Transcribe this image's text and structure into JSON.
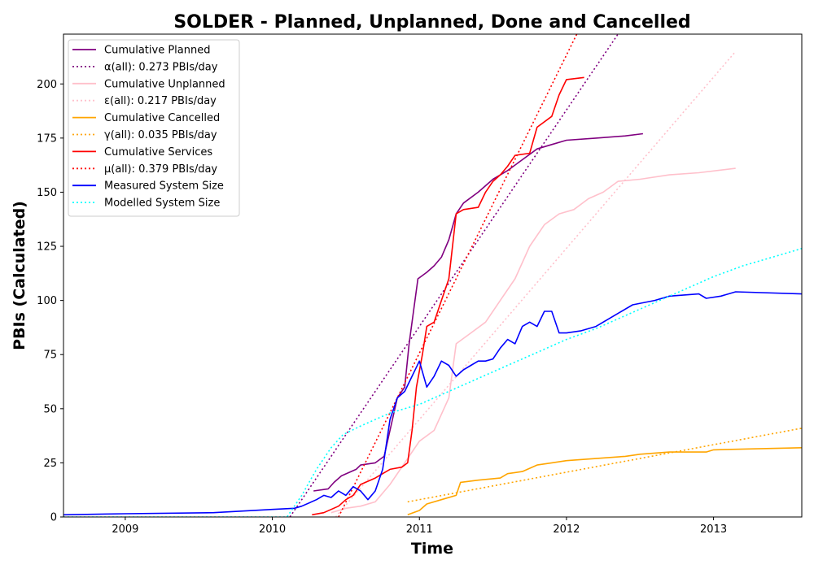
{
  "chart_data": {
    "type": "line",
    "title": "SOLDER - Planned, Unplanned, Done  and Cancelled",
    "xlabel": "Time",
    "ylabel": "PBIs (Calculated)",
    "xlim": [
      2008.58,
      2013.6
    ],
    "ylim": [
      0,
      223
    ],
    "x_ticks": [
      2009,
      2010,
      2011,
      2012,
      2013
    ],
    "x_tick_labels": [
      "2009",
      "2010",
      "2011",
      "2012",
      "2013"
    ],
    "y_ticks": [
      0,
      25,
      50,
      75,
      100,
      125,
      150,
      175,
      200
    ],
    "y_tick_labels": [
      "0",
      "25",
      "50",
      "75",
      "100",
      "125",
      "150",
      "175",
      "200"
    ],
    "grid": false,
    "legend_position": "upper-left",
    "series": [
      {
        "name": "Cumulative Planned",
        "color": "#800080",
        "style": "solid",
        "points": [
          [
            2010.28,
            12
          ],
          [
            2010.38,
            13
          ],
          [
            2010.42,
            16
          ],
          [
            2010.47,
            19
          ],
          [
            2010.57,
            22
          ],
          [
            2010.6,
            24
          ],
          [
            2010.7,
            25
          ],
          [
            2010.76,
            28
          ],
          [
            2010.8,
            40
          ],
          [
            2010.85,
            55
          ],
          [
            2010.9,
            60
          ],
          [
            2010.93,
            80
          ],
          [
            2010.97,
            100
          ],
          [
            2010.99,
            110
          ],
          [
            2011.05,
            113
          ],
          [
            2011.1,
            116
          ],
          [
            2011.15,
            120
          ],
          [
            2011.2,
            128
          ],
          [
            2011.25,
            140
          ],
          [
            2011.3,
            145
          ],
          [
            2011.4,
            150
          ],
          [
            2011.5,
            156
          ],
          [
            2011.6,
            160
          ],
          [
            2011.7,
            165
          ],
          [
            2011.8,
            170
          ],
          [
            2011.9,
            172
          ],
          [
            2012.0,
            174
          ],
          [
            2012.2,
            175
          ],
          [
            2012.4,
            176
          ],
          [
            2012.52,
            177
          ]
        ]
      },
      {
        "name": "α(all): 0.273 PBIs/day",
        "color": "#800080",
        "style": "dotted",
        "points": [
          [
            2010.12,
            0
          ],
          [
            2012.35,
            223
          ]
        ]
      },
      {
        "name": "Cumulative Unplanned",
        "color": "#FFC0CB",
        "style": "solid",
        "points": [
          [
            2010.4,
            2
          ],
          [
            2010.5,
            4
          ],
          [
            2010.6,
            5
          ],
          [
            2010.7,
            7
          ],
          [
            2010.8,
            15
          ],
          [
            2010.9,
            25
          ],
          [
            2011.0,
            35
          ],
          [
            2011.1,
            40
          ],
          [
            2011.2,
            55
          ],
          [
            2011.25,
            80
          ],
          [
            2011.35,
            85
          ],
          [
            2011.45,
            90
          ],
          [
            2011.55,
            100
          ],
          [
            2011.65,
            110
          ],
          [
            2011.75,
            125
          ],
          [
            2011.85,
            135
          ],
          [
            2011.95,
            140
          ],
          [
            2012.05,
            142
          ],
          [
            2012.15,
            147
          ],
          [
            2012.25,
            150
          ],
          [
            2012.35,
            155
          ],
          [
            2012.5,
            156
          ],
          [
            2012.7,
            158
          ],
          [
            2012.9,
            159
          ],
          [
            2013.15,
            161
          ]
        ]
      },
      {
        "name": "ε(all): 0.217 PBIs/day",
        "color": "#FFC0CB",
        "style": "dotted",
        "points": [
          [
            2010.43,
            0
          ],
          [
            2013.15,
            215
          ]
        ]
      },
      {
        "name": "Cumulative Cancelled",
        "color": "#FFA500",
        "style": "solid",
        "points": [
          [
            2010.92,
            1
          ],
          [
            2011.0,
            3
          ],
          [
            2011.05,
            6
          ],
          [
            2011.15,
            8
          ],
          [
            2011.25,
            10
          ],
          [
            2011.28,
            16
          ],
          [
            2011.4,
            17
          ],
          [
            2011.55,
            18
          ],
          [
            2011.6,
            20
          ],
          [
            2011.7,
            21
          ],
          [
            2011.8,
            24
          ],
          [
            2011.9,
            25
          ],
          [
            2012.0,
            26
          ],
          [
            2012.2,
            27
          ],
          [
            2012.4,
            28
          ],
          [
            2012.5,
            29
          ],
          [
            2012.7,
            30
          ],
          [
            2012.95,
            30
          ],
          [
            2013.0,
            31
          ],
          [
            2013.3,
            31.5
          ],
          [
            2013.6,
            32
          ]
        ]
      },
      {
        "name": "γ(all): 0.035 PBIs/day",
        "color": "#FFA500",
        "style": "dotted",
        "points": [
          [
            2010.92,
            7
          ],
          [
            2013.6,
            41
          ]
        ]
      },
      {
        "name": "Cumulative Services",
        "color": "#FF0000",
        "style": "solid",
        "points": [
          [
            2010.27,
            1
          ],
          [
            2010.35,
            2
          ],
          [
            2010.45,
            5
          ],
          [
            2010.5,
            8
          ],
          [
            2010.55,
            10
          ],
          [
            2010.6,
            15
          ],
          [
            2010.7,
            18
          ],
          [
            2010.75,
            20
          ],
          [
            2010.8,
            22
          ],
          [
            2010.88,
            23
          ],
          [
            2010.92,
            25
          ],
          [
            2010.95,
            40
          ],
          [
            2010.98,
            60
          ],
          [
            2011.02,
            75
          ],
          [
            2011.05,
            88
          ],
          [
            2011.1,
            90
          ],
          [
            2011.15,
            100
          ],
          [
            2011.2,
            110
          ],
          [
            2011.25,
            140
          ],
          [
            2011.3,
            142
          ],
          [
            2011.4,
            143
          ],
          [
            2011.45,
            150
          ],
          [
            2011.5,
            155
          ],
          [
            2011.55,
            158
          ],
          [
            2011.6,
            162
          ],
          [
            2011.65,
            167
          ],
          [
            2011.75,
            168
          ],
          [
            2011.8,
            180
          ],
          [
            2011.9,
            185
          ],
          [
            2011.95,
            195
          ],
          [
            2012.0,
            202
          ],
          [
            2012.12,
            203
          ]
        ]
      },
      {
        "name": "μ(all): 0.379 PBIs/day",
        "color": "#FF0000",
        "style": "dotted",
        "points": [
          [
            2010.45,
            0
          ],
          [
            2012.07,
            223
          ]
        ]
      },
      {
        "name": "Measured System Size",
        "color": "#0000FF",
        "style": "solid",
        "points": [
          [
            2008.58,
            1
          ],
          [
            2009.0,
            1.5
          ],
          [
            2009.6,
            2
          ],
          [
            2010.0,
            3.5
          ],
          [
            2010.15,
            4
          ],
          [
            2010.2,
            5
          ],
          [
            2010.3,
            8
          ],
          [
            2010.35,
            10
          ],
          [
            2010.4,
            9
          ],
          [
            2010.45,
            12
          ],
          [
            2010.5,
            10
          ],
          [
            2010.55,
            14
          ],
          [
            2010.6,
            12
          ],
          [
            2010.65,
            8
          ],
          [
            2010.7,
            12
          ],
          [
            2010.75,
            22
          ],
          [
            2010.8,
            45
          ],
          [
            2010.85,
            55
          ],
          [
            2010.9,
            58
          ],
          [
            2010.95,
            65
          ],
          [
            2011.0,
            72
          ],
          [
            2011.05,
            60
          ],
          [
            2011.1,
            65
          ],
          [
            2011.15,
            72
          ],
          [
            2011.2,
            70
          ],
          [
            2011.25,
            65
          ],
          [
            2011.3,
            68
          ],
          [
            2011.35,
            70
          ],
          [
            2011.4,
            72
          ],
          [
            2011.45,
            72
          ],
          [
            2011.5,
            73
          ],
          [
            2011.55,
            78
          ],
          [
            2011.6,
            82
          ],
          [
            2011.65,
            80
          ],
          [
            2011.7,
            88
          ],
          [
            2011.75,
            90
          ],
          [
            2011.8,
            88
          ],
          [
            2011.85,
            95
          ],
          [
            2011.9,
            95
          ],
          [
            2011.95,
            85
          ],
          [
            2012.0,
            85
          ],
          [
            2012.1,
            86
          ],
          [
            2012.2,
            88
          ],
          [
            2012.3,
            92
          ],
          [
            2012.45,
            98
          ],
          [
            2012.6,
            100
          ],
          [
            2012.7,
            102
          ],
          [
            2012.9,
            103
          ],
          [
            2012.95,
            101
          ],
          [
            2013.05,
            102
          ],
          [
            2013.15,
            104
          ],
          [
            2013.6,
            103
          ]
        ]
      },
      {
        "name": "Modelled System Size",
        "color": "#00FFFF",
        "style": "dotted",
        "points": [
          [
            2008.58,
            0
          ],
          [
            2010.1,
            0
          ],
          [
            2010.2,
            10
          ],
          [
            2010.3,
            22
          ],
          [
            2010.4,
            32
          ],
          [
            2010.48,
            38
          ],
          [
            2010.6,
            42
          ],
          [
            2010.8,
            48
          ],
          [
            2011.0,
            52
          ],
          [
            2011.2,
            58
          ],
          [
            2011.4,
            64
          ],
          [
            2011.6,
            70
          ],
          [
            2011.8,
            76
          ],
          [
            2012.0,
            82
          ],
          [
            2012.2,
            87
          ],
          [
            2012.4,
            93
          ],
          [
            2012.6,
            99
          ],
          [
            2012.8,
            105
          ],
          [
            2013.0,
            111
          ],
          [
            2013.2,
            116
          ],
          [
            2013.4,
            120
          ],
          [
            2013.6,
            124
          ]
        ]
      }
    ]
  }
}
